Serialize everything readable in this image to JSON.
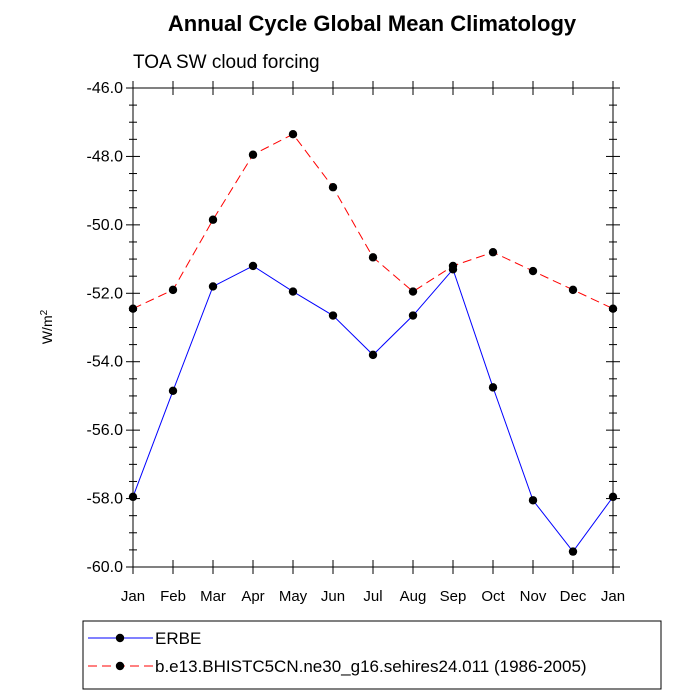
{
  "chart_data": {
    "type": "line",
    "title": "Annual Cycle Global Mean Climatology",
    "subtitle": "TOA SW cloud forcing",
    "xlabel": "",
    "ylabel_base": "W/m",
    "ylabel_sup": "2",
    "categories": [
      "Jan",
      "Feb",
      "Mar",
      "Apr",
      "May",
      "Jun",
      "Jul",
      "Aug",
      "Sep",
      "Oct",
      "Nov",
      "Dec",
      "Jan"
    ],
    "ylim": [
      -60.0,
      -46.0
    ],
    "yticks": [
      -46.0,
      -48.0,
      -50.0,
      -52.0,
      -54.0,
      -56.0,
      -58.0,
      -60.0
    ],
    "ytick_labels": [
      "-46.0",
      "-48.0",
      "-50.0",
      "-52.0",
      "-54.0",
      "-56.0",
      "-58.0",
      "-60.0"
    ],
    "series": [
      {
        "name": "ERBE",
        "color": "#0000ff",
        "dash": "solid",
        "values": [
          -57.95,
          -54.85,
          -51.8,
          -51.2,
          -51.95,
          -52.65,
          -53.8,
          -52.65,
          -51.3,
          -54.75,
          -58.05,
          -59.55,
          -57.95
        ]
      },
      {
        "name": "b.e13.BHISTC5CN.ne30_g16.sehires24.011 (1986-2005)",
        "color": "#ff0000",
        "dash": "dashed",
        "values": [
          -52.45,
          -51.9,
          -49.85,
          -47.95,
          -47.35,
          -48.9,
          -50.95,
          -51.95,
          -51.2,
          -50.8,
          -51.35,
          -51.9,
          -52.45
        ]
      }
    ]
  }
}
